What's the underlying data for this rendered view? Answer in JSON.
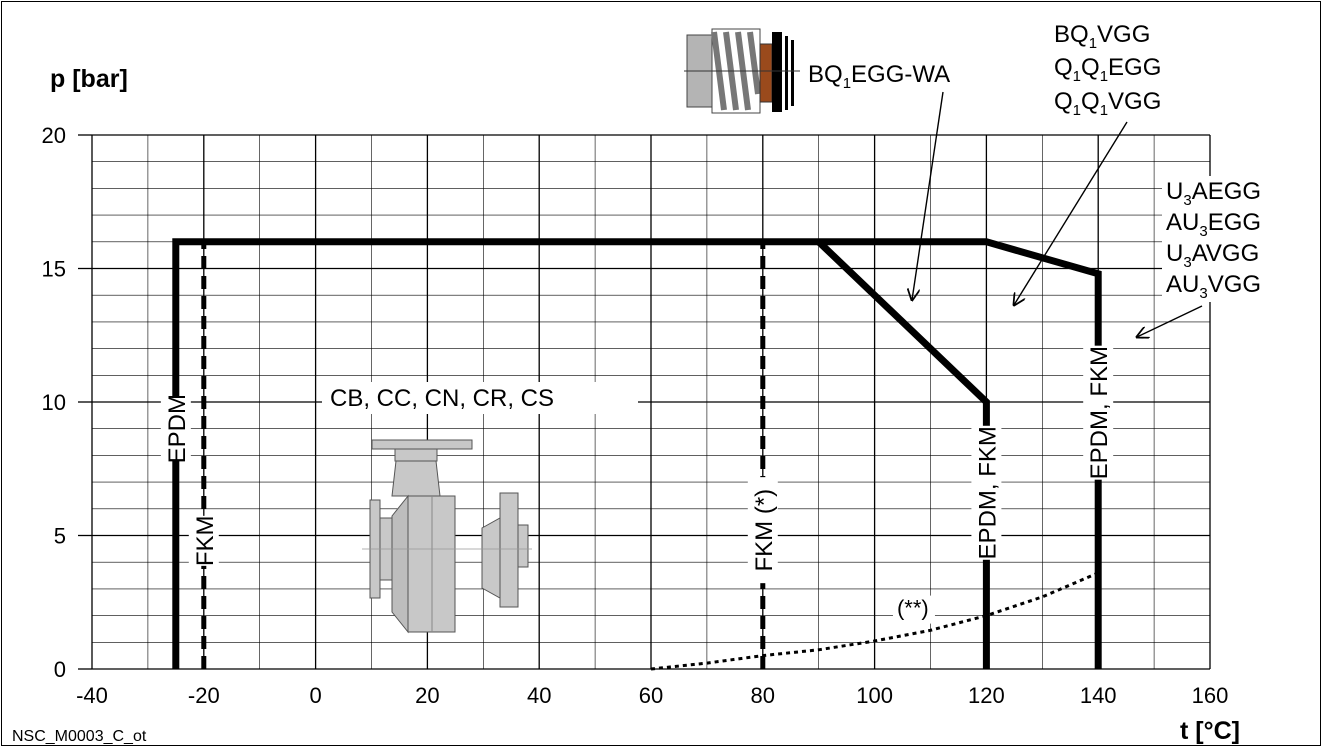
{
  "chart_data": {
    "type": "line",
    "y_axis_title": "p [bar]",
    "x_axis_title": "t [°C]",
    "footer_code": "NSC_M0003_C_ot",
    "xlim": [
      -40,
      160
    ],
    "ylim": [
      0,
      20
    ],
    "x_ticks": [
      -40,
      -20,
      0,
      20,
      40,
      60,
      80,
      100,
      120,
      140,
      160
    ],
    "y_ticks": [
      0,
      5,
      10,
      15,
      20
    ],
    "x_minor_step": 10,
    "y_minor_step": 1,
    "grid": true,
    "pump_range_label": "CB, CC, CN, CR, CS",
    "series": [
      {
        "key": "envelope",
        "style": "thick",
        "points": [
          [
            -25,
            0
          ],
          [
            -25,
            16
          ],
          [
            120,
            16
          ],
          [
            140,
            14.8
          ],
          [
            140,
            0
          ]
        ]
      },
      {
        "key": "bq1egg_wa",
        "style": "thick",
        "points": [
          [
            90,
            16
          ],
          [
            120,
            10
          ],
          [
            120,
            0
          ]
        ]
      },
      {
        "key": "fkm_low",
        "style": "dashed",
        "points": [
          [
            -20,
            0
          ],
          [
            -20,
            16
          ]
        ]
      },
      {
        "key": "fkm_star",
        "style": "dashed",
        "points": [
          [
            80,
            0
          ],
          [
            80,
            16
          ]
        ]
      },
      {
        "key": "vapour",
        "style": "dotted",
        "points": [
          [
            60,
            0
          ],
          [
            70,
            0.22
          ],
          [
            80,
            0.5
          ],
          [
            90,
            0.72
          ],
          [
            100,
            1.05
          ],
          [
            110,
            1.45
          ],
          [
            120,
            2.0
          ],
          [
            130,
            2.7
          ],
          [
            140,
            3.6
          ]
        ]
      }
    ],
    "vertical_labels": [
      {
        "text": "EPDM",
        "x": -25,
        "y": 9
      },
      {
        "text": "FKM",
        "x": -20,
        "y": 4.8
      },
      {
        "text": "FKM (*)",
        "x": 80,
        "y": 5.2
      },
      {
        "text": "EPDM, FKM",
        "x": 120,
        "y": 6.6
      },
      {
        "text": "EPDM, FKM",
        "x": 140,
        "y": 9.6
      }
    ],
    "curve_label": {
      "text": "(**)",
      "x": 104,
      "y": 2.0
    },
    "seal_labels": {
      "bq1egg_wa": [
        "BQ",
        "1",
        "EGG-WA"
      ],
      "group_bq1vgg": [
        [
          "BQ",
          "1",
          "VGG"
        ],
        [
          "Q",
          "1",
          "Q",
          "1",
          "EGG"
        ],
        [
          "Q",
          "1",
          "Q",
          "1",
          "VGG"
        ]
      ],
      "group_u3aegg": [
        [
          "U",
          "3",
          "AEGG"
        ],
        [
          "AU",
          "3",
          "EGG"
        ],
        [
          "U",
          "3",
          "AVGG"
        ],
        [
          "AU",
          "3",
          "VGG"
        ]
      ]
    },
    "colors": {
      "line": "#000000",
      "grid": "#000000",
      "pump_grey": "#c8c8c8",
      "seal_brown": "#9a4a1c"
    }
  }
}
